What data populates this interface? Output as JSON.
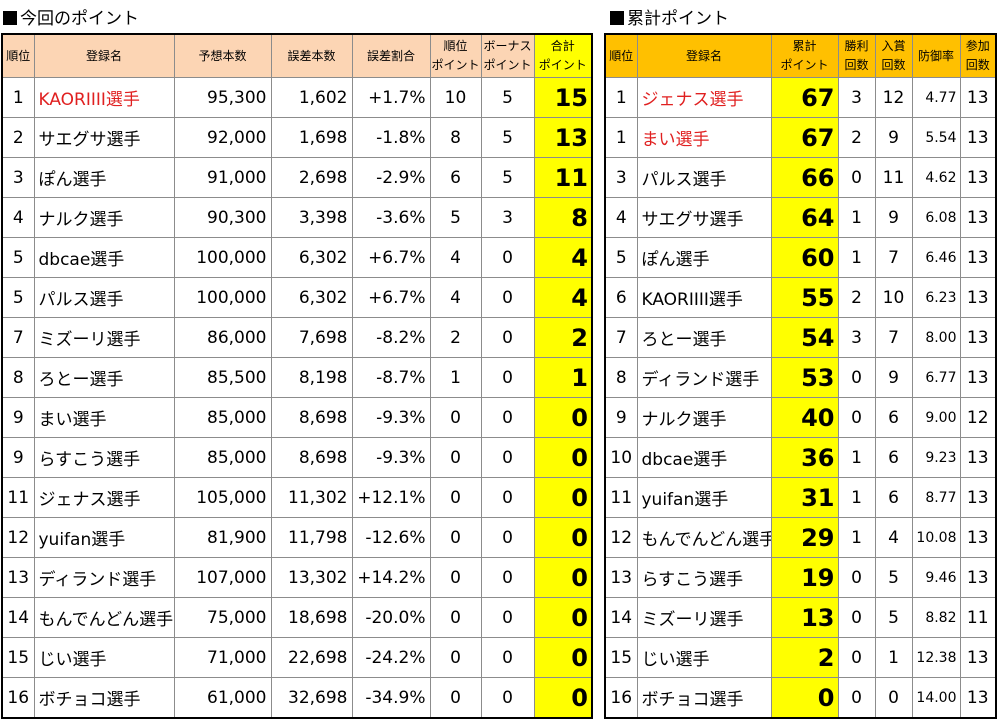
{
  "left": {
    "title": "今回のポイント",
    "headers": [
      "順位",
      "登録名",
      "予想本数",
      "誤差本数",
      "誤差割合",
      "順位\nポイント",
      "ボーナス\nポイント",
      "合計\nポイント"
    ],
    "rows": [
      {
        "rank": "1",
        "name": "KAORIIII選手",
        "pred": "95,300",
        "err": "1,602",
        "pct": "+1.7%",
        "rp": "10",
        "bp": "5",
        "total": "15",
        "highlight": true
      },
      {
        "rank": "2",
        "name": "サエグサ選手",
        "pred": "92,000",
        "err": "1,698",
        "pct": "-1.8%",
        "rp": "8",
        "bp": "5",
        "total": "13"
      },
      {
        "rank": "3",
        "name": "ぽん選手",
        "pred": "91,000",
        "err": "2,698",
        "pct": "-2.9%",
        "rp": "6",
        "bp": "5",
        "total": "11"
      },
      {
        "rank": "4",
        "name": "ナルク選手",
        "pred": "90,300",
        "err": "3,398",
        "pct": "-3.6%",
        "rp": "5",
        "bp": "3",
        "total": "8"
      },
      {
        "rank": "5",
        "name": "dbcae選手",
        "pred": "100,000",
        "err": "6,302",
        "pct": "+6.7%",
        "rp": "4",
        "bp": "0",
        "total": "4"
      },
      {
        "rank": "5",
        "name": "パルス選手",
        "pred": "100,000",
        "err": "6,302",
        "pct": "+6.7%",
        "rp": "4",
        "bp": "0",
        "total": "4"
      },
      {
        "rank": "7",
        "name": "ミズーリ選手",
        "pred": "86,000",
        "err": "7,698",
        "pct": "-8.2%",
        "rp": "2",
        "bp": "0",
        "total": "2"
      },
      {
        "rank": "8",
        "name": "ろとー選手",
        "pred": "85,500",
        "err": "8,198",
        "pct": "-8.7%",
        "rp": "1",
        "bp": "0",
        "total": "1"
      },
      {
        "rank": "9",
        "name": "まい選手",
        "pred": "85,000",
        "err": "8,698",
        "pct": "-9.3%",
        "rp": "0",
        "bp": "0",
        "total": "0"
      },
      {
        "rank": "9",
        "name": "らすこう選手",
        "pred": "85,000",
        "err": "8,698",
        "pct": "-9.3%",
        "rp": "0",
        "bp": "0",
        "total": "0"
      },
      {
        "rank": "11",
        "name": "ジェナス選手",
        "pred": "105,000",
        "err": "11,302",
        "pct": "+12.1%",
        "rp": "0",
        "bp": "0",
        "total": "0"
      },
      {
        "rank": "12",
        "name": "yuifan選手",
        "pred": "81,900",
        "err": "11,798",
        "pct": "-12.6%",
        "rp": "0",
        "bp": "0",
        "total": "0"
      },
      {
        "rank": "13",
        "name": "ディランド選手",
        "pred": "107,000",
        "err": "13,302",
        "pct": "+14.2%",
        "rp": "0",
        "bp": "0",
        "total": "0"
      },
      {
        "rank": "14",
        "name": "もんでんどん選手",
        "pred": "75,000",
        "err": "18,698",
        "pct": "-20.0%",
        "rp": "0",
        "bp": "0",
        "total": "0"
      },
      {
        "rank": "15",
        "name": "じい選手",
        "pred": "71,000",
        "err": "22,698",
        "pct": "-24.2%",
        "rp": "0",
        "bp": "0",
        "total": "0"
      },
      {
        "rank": "16",
        "name": "ボチョコ選手",
        "pred": "61,000",
        "err": "32,698",
        "pct": "-34.9%",
        "rp": "0",
        "bp": "0",
        "total": "0"
      }
    ]
  },
  "right": {
    "title": "累計ポイント",
    "headers": [
      "順位",
      "登録名",
      "累計\nポイント",
      "勝利\n回数",
      "入賞\n回数",
      "防御率",
      "参加\n回数"
    ],
    "rows": [
      {
        "rank": "1",
        "name": "ジェナス選手",
        "total": "67",
        "wins": "3",
        "places": "12",
        "era": "4.77",
        "games": "13",
        "highlight": true
      },
      {
        "rank": "1",
        "name": "まい選手",
        "total": "67",
        "wins": "2",
        "places": "9",
        "era": "5.54",
        "games": "13",
        "highlight": true
      },
      {
        "rank": "3",
        "name": "パルス選手",
        "total": "66",
        "wins": "0",
        "places": "11",
        "era": "4.62",
        "games": "13"
      },
      {
        "rank": "4",
        "name": "サエグサ選手",
        "total": "64",
        "wins": "1",
        "places": "9",
        "era": "6.08",
        "games": "13"
      },
      {
        "rank": "5",
        "name": "ぽん選手",
        "total": "60",
        "wins": "1",
        "places": "7",
        "era": "6.46",
        "games": "13"
      },
      {
        "rank": "6",
        "name": "KAORIIII選手",
        "total": "55",
        "wins": "2",
        "places": "10",
        "era": "6.23",
        "games": "13"
      },
      {
        "rank": "7",
        "name": "ろとー選手",
        "total": "54",
        "wins": "3",
        "places": "7",
        "era": "8.00",
        "games": "13"
      },
      {
        "rank": "8",
        "name": "ディランド選手",
        "total": "53",
        "wins": "0",
        "places": "9",
        "era": "6.77",
        "games": "13"
      },
      {
        "rank": "9",
        "name": "ナルク選手",
        "total": "40",
        "wins": "0",
        "places": "6",
        "era": "9.00",
        "games": "12"
      },
      {
        "rank": "10",
        "name": "dbcae選手",
        "total": "36",
        "wins": "1",
        "places": "6",
        "era": "9.23",
        "games": "13"
      },
      {
        "rank": "11",
        "name": "yuifan選手",
        "total": "31",
        "wins": "1",
        "places": "6",
        "era": "8.77",
        "games": "13"
      },
      {
        "rank": "12",
        "name": "もんでんどん選手",
        "total": "29",
        "wins": "1",
        "places": "4",
        "era": "10.08",
        "games": "13"
      },
      {
        "rank": "13",
        "name": "らすこう選手",
        "total": "19",
        "wins": "0",
        "places": "5",
        "era": "9.46",
        "games": "13"
      },
      {
        "rank": "14",
        "name": "ミズーリ選手",
        "total": "13",
        "wins": "0",
        "places": "5",
        "era": "8.82",
        "games": "11"
      },
      {
        "rank": "15",
        "name": "じい選手",
        "total": "2",
        "wins": "0",
        "places": "1",
        "era": "12.38",
        "games": "13"
      },
      {
        "rank": "16",
        "name": "ボチョコ選手",
        "total": "0",
        "wins": "0",
        "places": "0",
        "era": "14.00",
        "games": "13"
      }
    ]
  },
  "colors": {
    "left_header": "#fcd5b4",
    "right_header": "#ffc000",
    "total_fill": "#ffff00",
    "highlight_text": "#e02020"
  }
}
